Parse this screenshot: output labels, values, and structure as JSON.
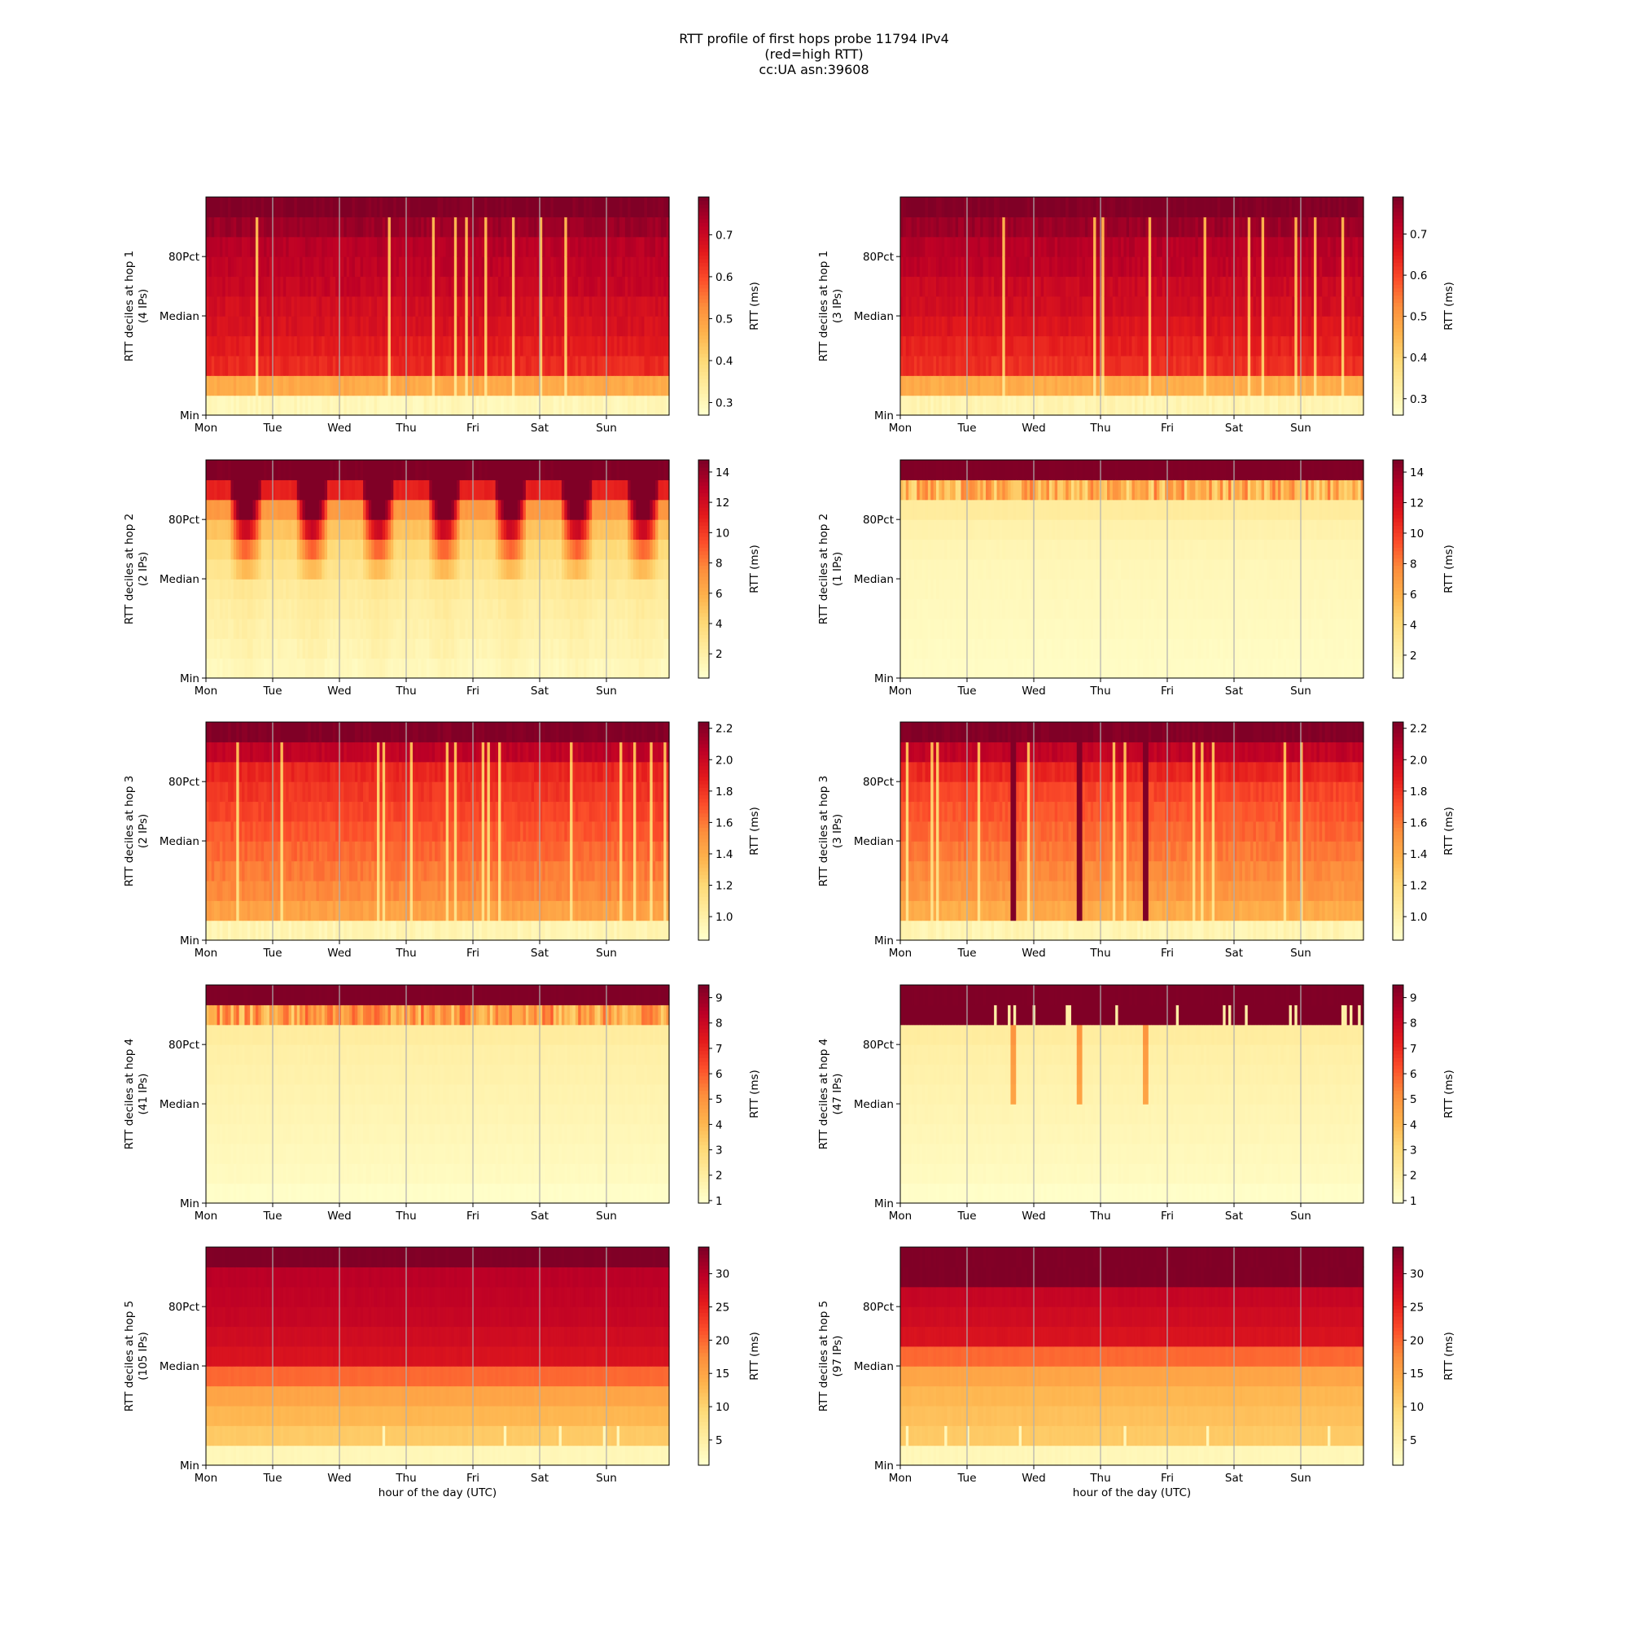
{
  "figure": {
    "title_lines": [
      "RTT profile of first hops probe 11794 IPv4",
      "(red=high RTT)",
      "cc:UA asn:39608"
    ],
    "colormap": "YlOrRd",
    "colormap_stops": [
      "#ffffcc",
      "#ffeda0",
      "#fed976",
      "#feb24c",
      "#fd8d3c",
      "#fc4e2a",
      "#e31a1c",
      "#bd0026",
      "#800026"
    ]
  },
  "chart_data": [
    {
      "type": "heatmap",
      "ylabel": "RTT deciles at hop 1",
      "ylabel_sub": "(4 IPs)",
      "xlabel": "",
      "x_ticks": [
        "Mon",
        "Tue",
        "Wed",
        "Thu",
        "Fri",
        "Sat",
        "Sun"
      ],
      "y_ticks": [
        "Min",
        "Median",
        "80Pct"
      ],
      "colorbar_label": "RTT (ms)",
      "colorbar_ticks": [
        "0.3",
        "0.4",
        "0.5",
        "0.6",
        "0.7"
      ],
      "colorbar_range": [
        0.27,
        0.79
      ],
      "decile_levels": [
        0.3,
        0.48,
        0.64,
        0.66,
        0.68,
        0.69,
        0.71,
        0.72,
        0.73,
        0.76,
        0.79
      ],
      "pattern": "spiky-low"
    },
    {
      "type": "heatmap",
      "ylabel": "RTT deciles at hop 1",
      "ylabel_sub": "(3 IPs)",
      "xlabel": "",
      "x_ticks": [
        "Mon",
        "Tue",
        "Wed",
        "Thu",
        "Fri",
        "Sat",
        "Sun"
      ],
      "y_ticks": [
        "Min",
        "Median",
        "80Pct"
      ],
      "colorbar_label": "RTT (ms)",
      "colorbar_ticks": [
        "0.3",
        "0.4",
        "0.5",
        "0.6",
        "0.7"
      ],
      "colorbar_range": [
        0.26,
        0.79
      ],
      "decile_levels": [
        0.3,
        0.47,
        0.63,
        0.65,
        0.67,
        0.69,
        0.7,
        0.72,
        0.73,
        0.76,
        0.79
      ],
      "pattern": "spiky-low"
    },
    {
      "type": "heatmap",
      "ylabel": "RTT deciles at hop 2",
      "ylabel_sub": "(2 IPs)",
      "xlabel": "",
      "x_ticks": [
        "Mon",
        "Tue",
        "Wed",
        "Thu",
        "Fri",
        "Sat",
        "Sun"
      ],
      "y_ticks": [
        "Min",
        "Median",
        "80Pct"
      ],
      "colorbar_label": "RTT (ms)",
      "colorbar_ticks": [
        "2",
        "4",
        "6",
        "8",
        "10",
        "12",
        "14"
      ],
      "colorbar_range": [
        0.4,
        14.8
      ],
      "decile_levels": [
        1.0,
        1.4,
        1.7,
        2.0,
        2.4,
        3.0,
        3.8,
        5.0,
        7.0,
        11.0,
        14.8
      ],
      "pattern": "diurnal"
    },
    {
      "type": "heatmap",
      "ylabel": "RTT deciles at hop 2",
      "ylabel_sub": "(1 IPs)",
      "xlabel": "",
      "x_ticks": [
        "Mon",
        "Tue",
        "Wed",
        "Thu",
        "Fri",
        "Sat",
        "Sun"
      ],
      "y_ticks": [
        "Min",
        "Median",
        "80Pct"
      ],
      "colorbar_label": "RTT (ms)",
      "colorbar_ticks": [
        "2",
        "4",
        "6",
        "8",
        "10",
        "12",
        "14"
      ],
      "colorbar_range": [
        0.5,
        14.8
      ],
      "decile_levels": [
        0.8,
        0.9,
        1.0,
        1.1,
        1.2,
        1.3,
        1.5,
        1.8,
        2.4,
        5.0,
        14.8
      ],
      "pattern": "upper-band"
    },
    {
      "type": "heatmap",
      "ylabel": "RTT deciles at hop 3",
      "ylabel_sub": "(2 IPs)",
      "xlabel": "",
      "x_ticks": [
        "Mon",
        "Tue",
        "Wed",
        "Thu",
        "Fri",
        "Sat",
        "Sun"
      ],
      "y_ticks": [
        "Min",
        "Median",
        "80Pct"
      ],
      "colorbar_label": "RTT (ms)",
      "colorbar_ticks": [
        "1.0",
        "1.2",
        "1.4",
        "1.6",
        "1.8",
        "2.0",
        "2.2"
      ],
      "colorbar_range": [
        0.85,
        2.24
      ],
      "decile_levels": [
        0.95,
        1.45,
        1.55,
        1.6,
        1.65,
        1.7,
        1.75,
        1.8,
        1.85,
        2.05,
        2.24
      ],
      "pattern": "spiky-low"
    },
    {
      "type": "heatmap",
      "ylabel": "RTT deciles at hop 3",
      "ylabel_sub": "(3 IPs)",
      "xlabel": "",
      "x_ticks": [
        "Mon",
        "Tue",
        "Wed",
        "Thu",
        "Fri",
        "Sat",
        "Sun"
      ],
      "y_ticks": [
        "Min",
        "Median",
        "80Pct"
      ],
      "colorbar_label": "RTT (ms)",
      "colorbar_ticks": [
        "1.0",
        "1.2",
        "1.4",
        "1.6",
        "1.8",
        "2.0",
        "2.2"
      ],
      "colorbar_range": [
        0.85,
        2.24
      ],
      "decile_levels": [
        0.95,
        1.4,
        1.5,
        1.55,
        1.6,
        1.65,
        1.7,
        1.75,
        1.85,
        2.05,
        2.24
      ],
      "pattern": "spiky-events"
    },
    {
      "type": "heatmap",
      "ylabel": "RTT deciles at hop 4",
      "ylabel_sub": "(41 IPs)",
      "xlabel": "",
      "x_ticks": [
        "Mon",
        "Tue",
        "Wed",
        "Thu",
        "Fri",
        "Sat",
        "Sun"
      ],
      "y_ticks": [
        "Min",
        "Median",
        "80Pct"
      ],
      "colorbar_label": "RTT (ms)",
      "colorbar_ticks": [
        "1",
        "2",
        "3",
        "4",
        "5",
        "6",
        "7",
        "8",
        "9"
      ],
      "colorbar_range": [
        0.9,
        9.5
      ],
      "decile_levels": [
        1.0,
        1.2,
        1.3,
        1.4,
        1.5,
        1.6,
        1.7,
        1.8,
        2.0,
        4.0,
        9.5
      ],
      "pattern": "upper-band"
    },
    {
      "type": "heatmap",
      "ylabel": "RTT deciles at hop 4",
      "ylabel_sub": "(47 IPs)",
      "xlabel": "",
      "x_ticks": [
        "Mon",
        "Tue",
        "Wed",
        "Thu",
        "Fri",
        "Sat",
        "Sun"
      ],
      "y_ticks": [
        "Min",
        "Median",
        "80Pct"
      ],
      "colorbar_label": "RTT (ms)",
      "colorbar_ticks": [
        "1",
        "2",
        "3",
        "4",
        "5",
        "6",
        "7",
        "8",
        "9"
      ],
      "colorbar_range": [
        0.9,
        9.5
      ],
      "decile_levels": [
        1.0,
        1.2,
        1.3,
        1.4,
        1.5,
        1.6,
        1.7,
        1.8,
        2.0,
        9.5,
        9.5
      ],
      "pattern": "upper-events"
    },
    {
      "type": "heatmap",
      "ylabel": "RTT deciles at hop 5",
      "ylabel_sub": "(105 IPs)",
      "xlabel": "hour of the day (UTC)",
      "x_ticks": [
        "Mon",
        "Tue",
        "Wed",
        "Thu",
        "Fri",
        "Sat",
        "Sun"
      ],
      "y_ticks": [
        "Min",
        "Median",
        "80Pct"
      ],
      "colorbar_label": "RTT (ms)",
      "colorbar_ticks": [
        "5",
        "10",
        "15",
        "20",
        "25",
        "30"
      ],
      "colorbar_range": [
        1.2,
        34.0
      ],
      "decile_levels": [
        3.0,
        11.0,
        13.0,
        15.0,
        20.0,
        27.0,
        28.0,
        29.0,
        29.5,
        30.0,
        34.0
      ],
      "pattern": "stable"
    },
    {
      "type": "heatmap",
      "ylabel": "RTT deciles at hop 5",
      "ylabel_sub": "(97 IPs)",
      "xlabel": "hour of the day (UTC)",
      "x_ticks": [
        "Mon",
        "Tue",
        "Wed",
        "Thu",
        "Fri",
        "Sat",
        "Sun"
      ],
      "y_ticks": [
        "Min",
        "Median",
        "80Pct"
      ],
      "colorbar_label": "RTT (ms)",
      "colorbar_ticks": [
        "5",
        "10",
        "15",
        "20",
        "25",
        "30"
      ],
      "colorbar_range": [
        1.2,
        34.0
      ],
      "decile_levels": [
        3.0,
        11.0,
        12.0,
        13.0,
        15.0,
        20.0,
        27.0,
        28.0,
        29.0,
        34.0,
        34.0
      ],
      "pattern": "stable"
    }
  ]
}
